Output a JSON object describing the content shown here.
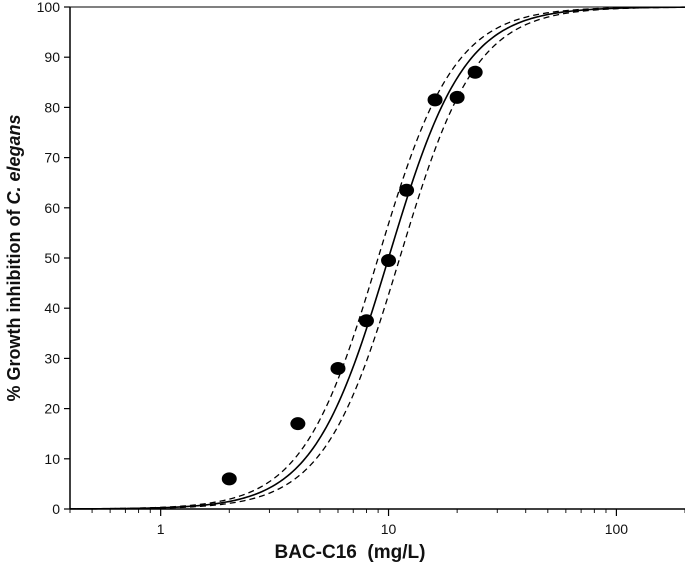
{
  "chart_data": {
    "type": "scatter",
    "title": "",
    "xlabel": "BAC-C16  (mg/L)",
    "ylabel_parts": [
      "% Growth inhibition of ",
      "C. elegans"
    ],
    "x_scale": "log",
    "xlim": [
      0.4,
      200
    ],
    "ylim": [
      0,
      100
    ],
    "x_ticks": [
      1,
      10,
      100
    ],
    "x_tick_labels": [
      "1",
      "10",
      "100"
    ],
    "y_ticks": [
      0,
      10,
      20,
      30,
      40,
      50,
      60,
      70,
      80,
      90,
      100
    ],
    "y_tick_labels": [
      "0",
      "10",
      "20",
      "30",
      "40",
      "50",
      "60",
      "70",
      "80",
      "90",
      "100"
    ],
    "grid": false,
    "legend": "none",
    "series": [
      {
        "kind": "points",
        "x": [
          2,
          4,
          6,
          8,
          10,
          12,
          16,
          20,
          24
        ],
        "y": [
          6,
          17,
          28,
          37.5,
          49.5,
          63.5,
          81.5,
          82,
          87
        ],
        "color": "#000000"
      },
      {
        "kind": "fit-curve",
        "model": "logistic",
        "ec50": 10,
        "slope": 2.6,
        "color": "#000000",
        "dash": "solid"
      },
      {
        "kind": "confidence-band-upper",
        "model": "logistic",
        "ec50": 9,
        "slope": 2.6,
        "color": "#000000",
        "dash": "dashed"
      },
      {
        "kind": "confidence-band-lower",
        "model": "logistic",
        "ec50": 11.2,
        "slope": 2.6,
        "color": "#000000",
        "dash": "dashed"
      }
    ]
  }
}
